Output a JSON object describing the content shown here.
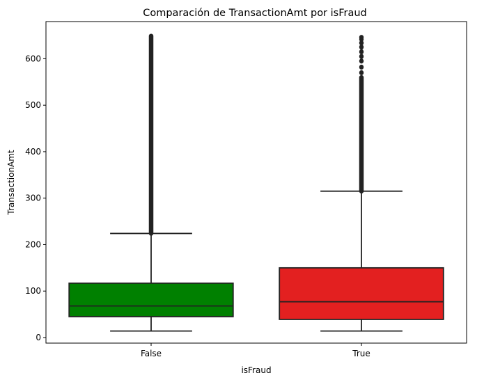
{
  "chart_data": {
    "type": "box",
    "title": "Comparación de TransactionAmt por isFraud",
    "xlabel": "isFraud",
    "ylabel": "TransactionAmt",
    "ylim": [
      -12,
      680
    ],
    "yticks": [
      0,
      100,
      200,
      300,
      400,
      500,
      600
    ],
    "grid": false,
    "categories": [
      "False",
      "True"
    ],
    "boxes": [
      {
        "category": "False",
        "color": "#008000",
        "whisker_low": 14,
        "q1": 45,
        "median": 68,
        "q3": 117,
        "whisker_high": 224,
        "outliers_dense_range": [
          224,
          649
        ]
      },
      {
        "category": "True",
        "color": "#e32020",
        "whisker_low": 14,
        "q1": 39,
        "median": 77,
        "q3": 150,
        "whisker_high": 315,
        "outliers_dense_range": [
          315,
          560
        ],
        "outliers_sparse": [
          570,
          582,
          595,
          605,
          615,
          625,
          634,
          642,
          646
        ]
      }
    ]
  }
}
